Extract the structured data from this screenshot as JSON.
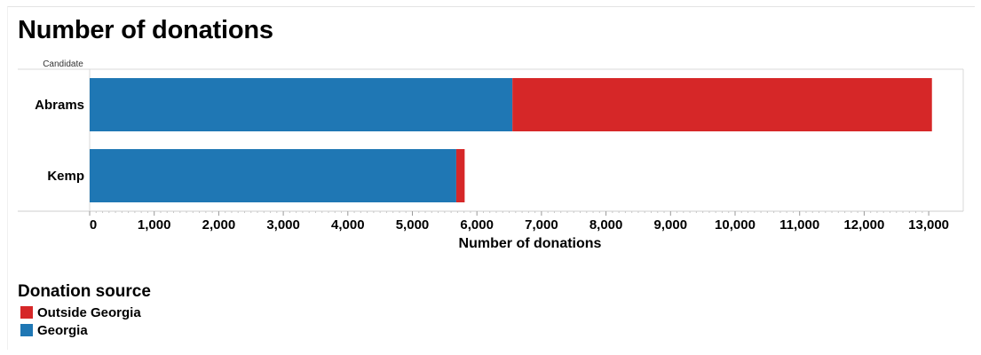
{
  "chart_data": {
    "type": "bar",
    "orientation": "horizontal",
    "stacked": true,
    "title": "Number of donations",
    "row_header": "Candidate",
    "xlabel": "Number of donations",
    "categories": [
      "Abrams",
      "Kemp"
    ],
    "series": [
      {
        "name": "Georgia",
        "color": "#1f77b4",
        "values": [
          6550,
          5680
        ]
      },
      {
        "name": "Outside Georgia",
        "color": "#d62728",
        "values": [
          6500,
          130
        ]
      }
    ],
    "xlim": [
      0,
      13500
    ],
    "xticks": [
      0,
      1000,
      2000,
      3000,
      4000,
      5000,
      6000,
      7000,
      8000,
      9000,
      10000,
      11000,
      12000,
      13000
    ],
    "xtick_labels": [
      "0",
      "1,000",
      "2,000",
      "3,000",
      "4,000",
      "5,000",
      "6,000",
      "7,000",
      "8,000",
      "9,000",
      "10,000",
      "11,000",
      "12,000",
      "13,000"
    ],
    "grid": false,
    "legend": {
      "title": "Donation source",
      "position": "bottom-left",
      "items": [
        {
          "label": "Outside Georgia",
          "color": "#d62728"
        },
        {
          "label": "Georgia",
          "color": "#1f77b4"
        }
      ]
    }
  }
}
